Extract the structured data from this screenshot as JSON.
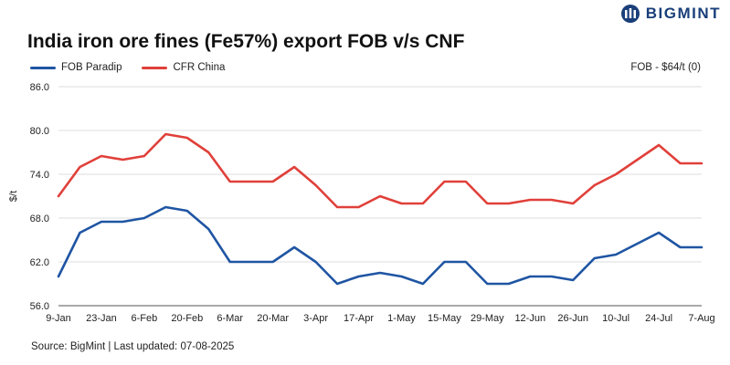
{
  "brand": {
    "name": "BIGMINT",
    "color": "#1a3f7a"
  },
  "chart_data": {
    "type": "line",
    "title": "India iron ore fines (Fe57%) export FOB v/s CNF",
    "corner_note": "FOB - $64/t (0)",
    "source": "Source: BigMint | Last updated: 07-08-2025",
    "xlabel": "",
    "ylabel": "$/t",
    "ylim": [
      56.0,
      86.0
    ],
    "yticks": [
      "56.0",
      "62.0",
      "68.0",
      "74.0",
      "80.0",
      "86.0"
    ],
    "xtick_labels": [
      "9-Jan",
      "23-Jan",
      "6-Feb",
      "20-Feb",
      "6-Mar",
      "20-Mar",
      "3-Apr",
      "17-Apr",
      "1-May",
      "15-May",
      "29-May",
      "12-Jun",
      "26-Jun",
      "10-Jul",
      "24-Jul",
      "7-Aug"
    ],
    "grid": true,
    "legend_position": "top-left",
    "x": [
      "9-Jan",
      "16-Jan",
      "23-Jan",
      "30-Jan",
      "6-Feb",
      "13-Feb",
      "20-Feb",
      "27-Feb",
      "6-Mar",
      "13-Mar",
      "20-Mar",
      "27-Mar",
      "3-Apr",
      "10-Apr",
      "17-Apr",
      "24-Apr",
      "1-May",
      "8-May",
      "15-May",
      "22-May",
      "29-May",
      "5-Jun",
      "12-Jun",
      "19-Jun",
      "26-Jun",
      "3-Jul",
      "10-Jul",
      "17-Jul",
      "24-Jul",
      "31-Jul",
      "7-Aug"
    ],
    "series": [
      {
        "name": "FOB Paradip",
        "color": "#1f55a3",
        "values": [
          60.0,
          66.0,
          67.5,
          67.5,
          68.0,
          69.5,
          69.0,
          66.5,
          62.0,
          62.0,
          62.0,
          64.0,
          62.0,
          59.0,
          60.0,
          60.5,
          60.0,
          59.0,
          62.0,
          62.0,
          59.0,
          59.0,
          60.0,
          60.0,
          59.5,
          62.5,
          63.0,
          64.5,
          66.0,
          64.0,
          64.0
        ]
      },
      {
        "name": "CFR China",
        "color": "#e0403a",
        "values": [
          71.0,
          75.0,
          76.5,
          76.0,
          76.5,
          79.5,
          79.0,
          77.0,
          73.0,
          73.0,
          73.0,
          75.0,
          72.5,
          69.5,
          69.5,
          71.0,
          70.0,
          70.0,
          73.0,
          73.0,
          70.0,
          70.0,
          70.5,
          70.5,
          70.0,
          72.5,
          74.0,
          76.0,
          78.0,
          75.5,
          75.5
        ]
      }
    ]
  }
}
